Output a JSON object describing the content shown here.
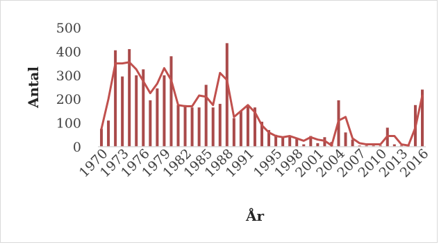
{
  "chart_data": {
    "type": "bar",
    "xlabel": "År",
    "ylabel": "Antal",
    "ylim": [
      0,
      500
    ],
    "yticks": [
      0,
      100,
      200,
      300,
      400,
      500
    ],
    "grid": false,
    "x_tick_labels": [
      "1970",
      "1973",
      "1976",
      "1979",
      "1982",
      "1985",
      "1988",
      "1991",
      "1995",
      "1998",
      "2001",
      "2004",
      "2007",
      "2010",
      "2013",
      "2016"
    ],
    "years": [
      1970,
      1971,
      1972,
      1973,
      1974,
      1975,
      1976,
      1977,
      1978,
      1979,
      1980,
      1981,
      1982,
      1983,
      1984,
      1985,
      1986,
      1987,
      1988,
      1989,
      1990,
      1991,
      1992,
      1993,
      1994,
      1995,
      1996,
      1997,
      1998,
      1999,
      2000,
      2001,
      2002,
      2003,
      2004,
      2005,
      2006,
      2007,
      2008,
      2009,
      2010,
      2011,
      2012,
      2013,
      2014,
      2015,
      2016
    ],
    "series": [
      {
        "type": "bar",
        "color": "#a94a4a",
        "values": [
          75,
          110,
          405,
          295,
          410,
          300,
          325,
          195,
          245,
          300,
          380,
          175,
          175,
          165,
          165,
          260,
          165,
          180,
          435,
          120,
          150,
          175,
          165,
          105,
          70,
          50,
          40,
          45,
          35,
          10,
          45,
          15,
          40,
          20,
          195,
          60,
          30,
          5,
          5,
          5,
          5,
          80,
          10,
          5,
          5,
          175,
          240
        ]
      },
      {
        "type": "line",
        "color": "#c0504d",
        "values": [
          75,
          200,
          350,
          350,
          355,
          325,
          275,
          225,
          265,
          330,
          280,
          175,
          170,
          170,
          215,
          210,
          175,
          310,
          280,
          125,
          150,
          175,
          145,
          90,
          60,
          45,
          40,
          45,
          35,
          25,
          40,
          30,
          25,
          5,
          110,
          125,
          35,
          15,
          10,
          10,
          10,
          45,
          45,
          10,
          5,
          80,
          215
        ]
      }
    ]
  }
}
